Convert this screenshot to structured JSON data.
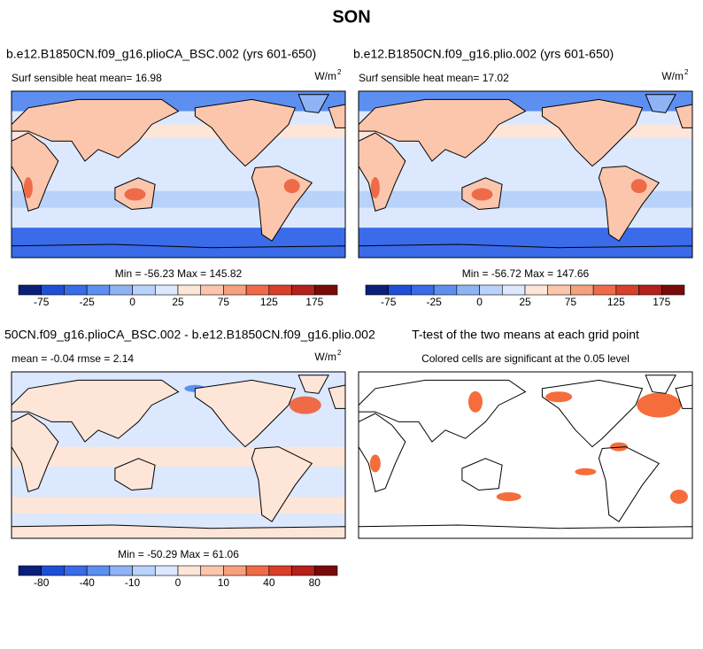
{
  "title": "SON",
  "palettes": {
    "main": [
      "#0a1f7a",
      "#1f4fd6",
      "#3a6be8",
      "#5d8ff0",
      "#8fb3f5",
      "#b8d2fa",
      "#dbe8fd",
      "#fde5d8",
      "#fcc6ad",
      "#f7a07e",
      "#ef6b47",
      "#d9402a",
      "#b3211a",
      "#7a0a0a"
    ]
  },
  "panels": [
    {
      "title": "b.e12.B1850CN.f09_g16.plioCA_BSC.002 (yrs 601-650)",
      "subtitle": "Surf sensible heat   mean=  16.98",
      "units": {
        "base": "W/m",
        "exp": "2"
      },
      "minmax": "Min = -56.23 Max = 145.82",
      "colorbar": [
        "-75",
        "-25",
        "0",
        "25",
        "75",
        "125",
        "175"
      ]
    },
    {
      "title": "b.e12.B1850CN.f09_g16.plio.002 (yrs 601-650)",
      "subtitle": "Surf sensible heat   mean=  17.02",
      "units": {
        "base": "W/m",
        "exp": "2"
      },
      "minmax": "Min = -56.72 Max = 147.66",
      "colorbar": [
        "-75",
        "-25",
        "0",
        "25",
        "75",
        "125",
        "175"
      ]
    },
    {
      "title": "50CN.f09_g16.plioCA_BSC.002 - b.e12.B1850CN.f09_g16.plio.002",
      "subtitle": "mean =  -0.04     rmse =   2.14",
      "units": {
        "base": "W/m",
        "exp": "2"
      },
      "minmax": "Min = -50.29 Max = 61.06",
      "colorbar": [
        "-80",
        "-40",
        "-10",
        "0",
        "10",
        "40",
        "80"
      ]
    },
    {
      "title": "T-test of the two means at each grid point",
      "subtitle": "Colored cells are significant at the 0.05 level"
    }
  ]
}
